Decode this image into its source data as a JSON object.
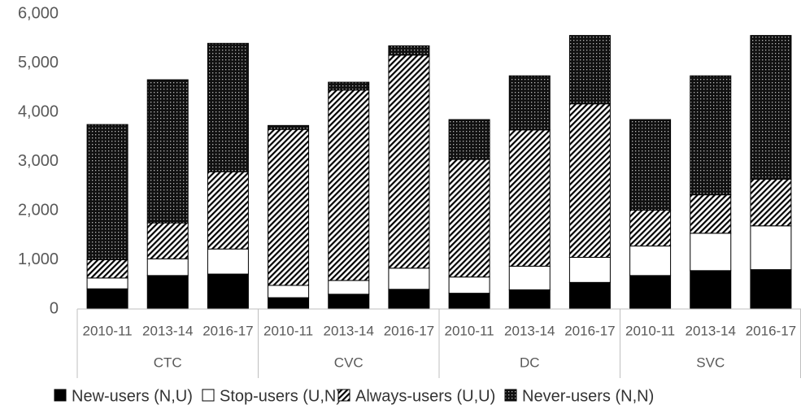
{
  "chart_data": {
    "type": "stacked_bar",
    "groups": [
      "CTC",
      "CVC",
      "DC",
      "SVC"
    ],
    "categories": [
      "2010-11",
      "2013-14",
      "2016-17",
      "2010-11",
      "2013-14",
      "2016-17",
      "2010-11",
      "2013-14",
      "2016-17",
      "2010-11",
      "2013-14",
      "2016-17"
    ],
    "series": [
      {
        "name": "New-users (N,U)",
        "color": "#000000",
        "pattern": "solid",
        "values": [
          410,
          680,
          710,
          230,
          300,
          400,
          320,
          390,
          540,
          680,
          780,
          800
        ]
      },
      {
        "name": "Stop-users (U,N)",
        "color": "#ffffff",
        "pattern": "solid",
        "values": [
          220,
          340,
          510,
          250,
          280,
          430,
          330,
          480,
          510,
          600,
          760,
          890
        ]
      },
      {
        "name": "Always-users (U,U)",
        "color": "#000000",
        "pattern": "diagonal",
        "values": [
          370,
          730,
          1570,
          3170,
          3870,
          4330,
          2390,
          2770,
          3120,
          730,
          780,
          950
        ]
      },
      {
        "name": "Never-users (N,N)",
        "color": "#000000",
        "pattern": "dots",
        "values": [
          2750,
          2910,
          2610,
          80,
          160,
          190,
          810,
          1100,
          1390,
          1840,
          2420,
          2920
        ]
      }
    ],
    "ylim": [
      0,
      6000
    ],
    "yticks": [
      0,
      {
        "value": 1000,
        "label": "1,000"
      },
      {
        "value": 2000,
        "label": "2,000"
      },
      {
        "value": 3000,
        "label": "3,000"
      },
      {
        "value": 4000,
        "label": "4,000"
      },
      {
        "value": 5000,
        "label": "5,000"
      },
      {
        "value": 6000,
        "label": "6,000"
      }
    ],
    "grid": false,
    "legend": "bottom"
  }
}
